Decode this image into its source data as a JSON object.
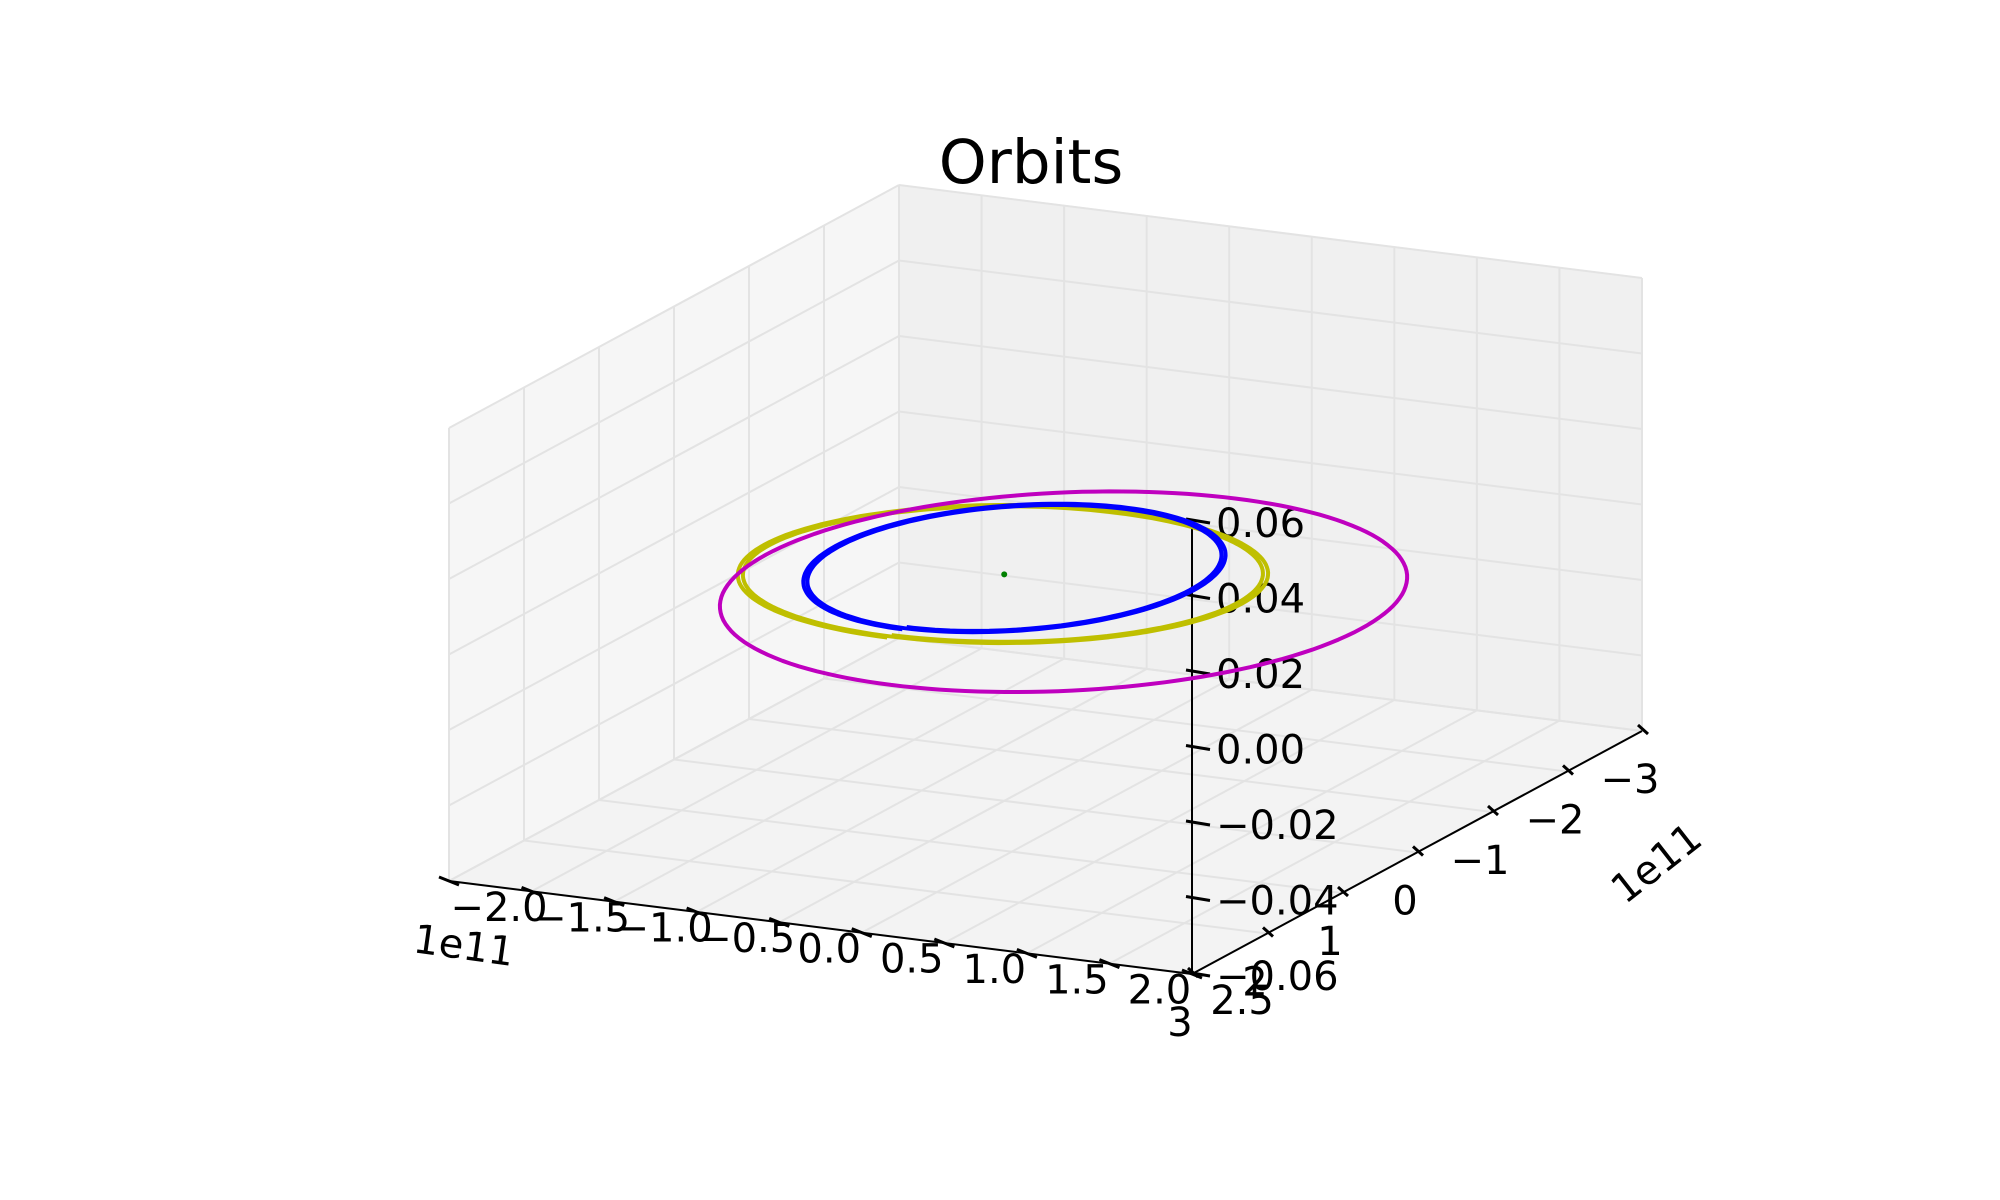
{
  "chart_data": {
    "type": "line",
    "projection": "3d",
    "title": "Orbits",
    "grid": true,
    "pane_color": "#f2f2f2",
    "axes": {
      "x": {
        "range": [
          -3,
          3
        ],
        "ticks": [
          -3,
          -2,
          -1,
          0,
          1,
          2,
          3
        ],
        "tick_labels": [
          "−3",
          "−2",
          "−1",
          "0",
          "1",
          "2",
          "3"
        ],
        "offset_label": "1e11"
      },
      "y": {
        "range": [
          -2.0,
          2.5
        ],
        "ticks": [
          -2.0,
          -1.5,
          -1.0,
          -0.5,
          0.0,
          0.5,
          1.0,
          1.5,
          2.0,
          2.5
        ],
        "tick_labels": [
          "−2.0",
          "−1.5",
          "−1.0",
          "−0.5",
          "0.0",
          "0.5",
          "1.0",
          "1.5",
          "2.0",
          "2.5"
        ],
        "offset_label": "1e11"
      },
      "z": {
        "range": [
          -0.06,
          0.06
        ],
        "ticks": [
          -0.06,
          -0.04,
          -0.02,
          0.0,
          0.02,
          0.04,
          0.06
        ],
        "tick_labels": [
          "−0.06",
          "−0.04",
          "−0.02",
          "0.00",
          "0.02",
          "0.04",
          "0.06"
        ]
      }
    },
    "series": [
      {
        "color": "#bfbf00",
        "type": "line",
        "center": [
          0.0,
          0.0
        ],
        "semi_major": 1.5,
        "semi_minor": 1.4,
        "z": 0.0,
        "loops": 2,
        "drift": 0.04
      },
      {
        "color": "#0000ff",
        "type": "line",
        "center": [
          -0.15,
          0.0
        ],
        "semi_major": 1.45,
        "semi_minor": 1.05,
        "z": 0.0,
        "loops": 2,
        "drift": 0.04
      },
      {
        "color": "#bf00bf",
        "type": "line",
        "center": [
          0.2,
          0.45
        ],
        "semi_major": 2.3,
        "semi_minor": 1.8,
        "z": 0.0,
        "loops": 1,
        "drift": 0.0
      },
      {
        "color": "#008000",
        "type": "point",
        "x": 0.0,
        "y": 0.0,
        "z": 0.0
      }
    ]
  }
}
